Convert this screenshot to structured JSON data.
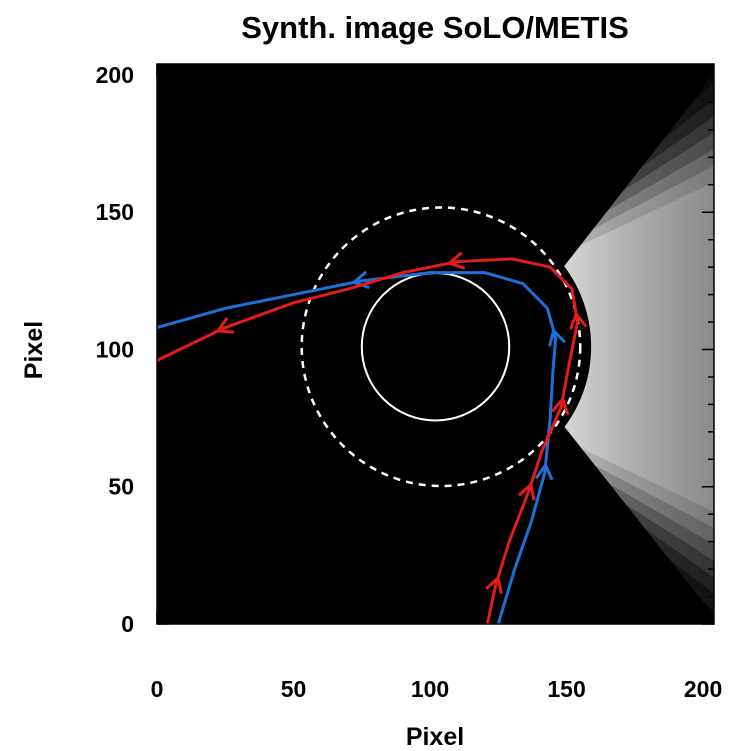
{
  "chart_data": {
    "type": "image",
    "title": "Synth. image SoLO/METIS",
    "xlabel": "Pixel",
    "ylabel": "Pixel",
    "xlim": [
      0,
      204
    ],
    "ylim": [
      0,
      204
    ],
    "x_ticks": [
      0,
      50,
      100,
      150,
      200
    ],
    "y_ticks": [
      0,
      50,
      100,
      150,
      200
    ],
    "background_color": "#000000",
    "disk": {
      "center": [
        102,
        101
      ],
      "radius": 27,
      "style": "solid",
      "color": "#ffffff"
    },
    "occulter": {
      "center": [
        104,
        101
      ],
      "radius": 51,
      "style": "dashed",
      "color": "#ffffff"
    },
    "bright_region": {
      "apex": [
        126,
        101
      ],
      "top_edge_end": [
        200,
        195
      ],
      "bottom_edge_end": [
        204,
        3
      ],
      "peak_brightness_color": "#f2f2f2",
      "edge_color": "#7a7a7a"
    },
    "series": [
      {
        "color": "#1e70d8",
        "points": [
          [
            125,
            0
          ],
          [
            131,
            20
          ],
          [
            137,
            37
          ],
          [
            142,
            55
          ],
          [
            144,
            75
          ],
          [
            145,
            92
          ],
          [
            146,
            104
          ],
          [
            143,
            115
          ],
          [
            134,
            124
          ],
          [
            120,
            128
          ],
          [
            100,
            128
          ],
          [
            75,
            125
          ],
          [
            50,
            120
          ],
          [
            25,
            115
          ],
          [
            0,
            108
          ]
        ],
        "arrow_indices": [
          3,
          6,
          11
        ]
      },
      {
        "color": "#e21b1b",
        "points": [
          [
            121,
            0
          ],
          [
            124,
            14
          ],
          [
            129,
            30
          ],
          [
            136,
            48
          ],
          [
            141,
            63
          ],
          [
            148,
            79
          ],
          [
            151,
            95
          ],
          [
            154,
            110
          ],
          [
            152,
            122
          ],
          [
            144,
            130
          ],
          [
            130,
            133
          ],
          [
            110,
            132
          ],
          [
            90,
            128
          ],
          [
            70,
            122
          ],
          [
            50,
            117
          ],
          [
            25,
            108
          ],
          [
            0,
            96
          ]
        ],
        "arrow_indices": [
          1,
          3,
          5,
          7,
          11,
          15
        ]
      }
    ]
  }
}
